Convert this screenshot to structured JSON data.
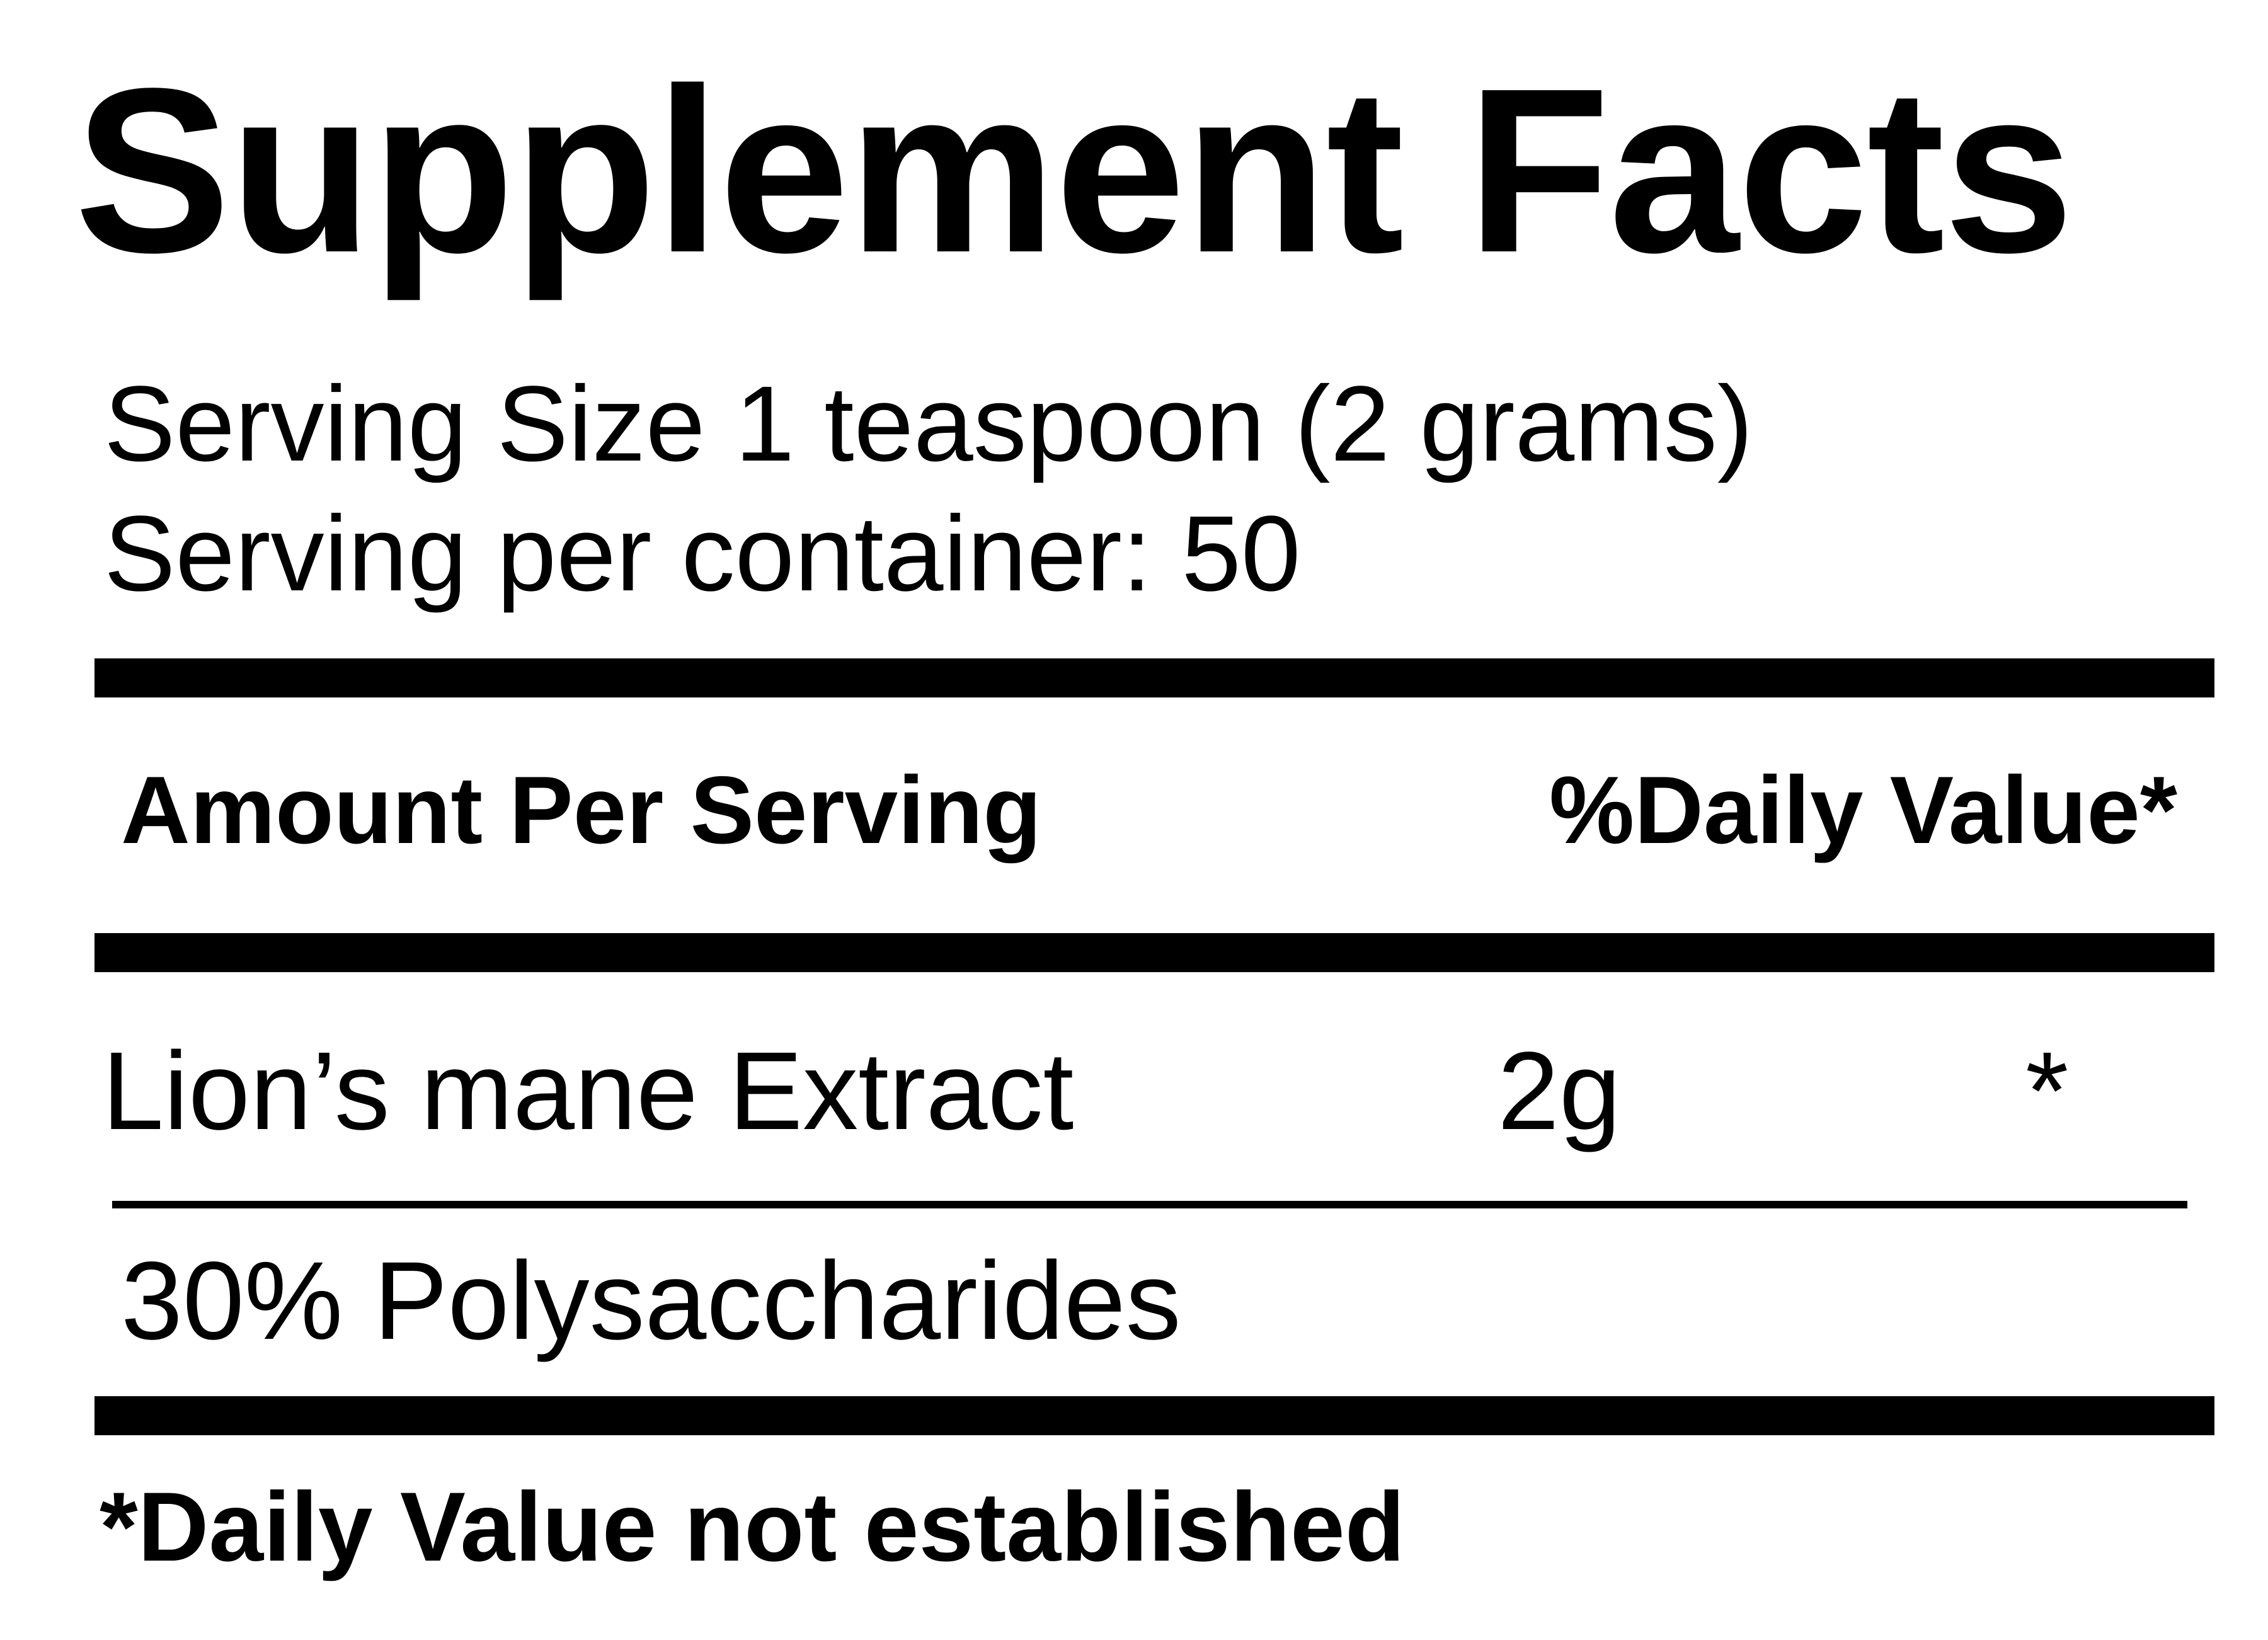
{
  "label": {
    "title": "Supplement Facts",
    "serving_size_line": "Serving Size 1 teaspoon (2 grams)",
    "servings_per_container_line": "Serving per container: 50",
    "table": {
      "amount_header": "Amount Per Serving",
      "daily_value_header": "%Daily Value*",
      "rows": [
        {
          "name": "Lion’s mane Extract",
          "amount": "2g",
          "daily_value": "*",
          "sub_detail": "30% Polysaccharides"
        }
      ]
    },
    "footnote": "*Daily Value not established",
    "colors": {
      "text": "#000000",
      "background": "#ffffff"
    }
  }
}
